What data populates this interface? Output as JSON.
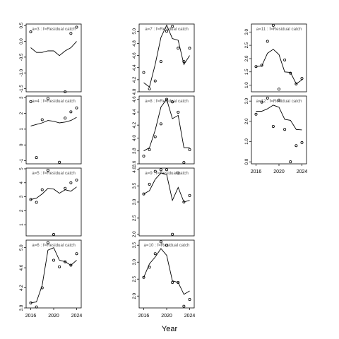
{
  "figure": {
    "xlabel": "Year"
  },
  "chart_data": [
    {
      "type": "scatter+line",
      "title": "a=3  :  f=Residual catch",
      "x": [
        2016,
        2017,
        2018,
        2019,
        2020,
        2021,
        2022,
        2023,
        2024
      ],
      "points": [
        0.3,
        null,
        null,
        null,
        null,
        null,
        -1.6,
        0.25,
        0.45
      ],
      "line": [
        -0.2,
        -0.35,
        -0.35,
        -0.3,
        -0.3,
        -0.45,
        -0.3,
        -0.2,
        0.0
      ],
      "ylim": [
        -1.6,
        0.55
      ],
      "yticks": [
        0.5,
        0.0,
        -0.5,
        -1.0,
        -1.5
      ],
      "ytick_labels": [
        "0.5",
        "0.0",
        "-0.5",
        "-1.0",
        "-1.5"
      ]
    },
    {
      "type": "scatter+line",
      "title": "a=4  :  f=Residual catch",
      "x": [
        2016,
        2017,
        2018,
        2019,
        2020,
        2021,
        2022,
        2023,
        2024
      ],
      "points": [
        2.75,
        -0.8,
        1.6,
        2.95,
        null,
        -1.1,
        1.7,
        2.1,
        2.35
      ],
      "line": [
        1.2,
        1.3,
        1.4,
        1.55,
        1.5,
        1.4,
        1.45,
        1.55,
        1.75
      ],
      "ylim": [
        -1.2,
        3.1
      ],
      "yticks": [
        3,
        2,
        1,
        0,
        -1
      ],
      "ytick_labels": [
        "3",
        "2",
        "1",
        "0",
        "-1"
      ]
    },
    {
      "type": "scatter+line",
      "title": "a=5  :  f=Residual catch",
      "x": [
        2016,
        2017,
        2018,
        2019,
        2020,
        2021,
        2022,
        2023,
        2024
      ],
      "points": [
        2.8,
        2.6,
        3.5,
        4.9,
        0.3,
        null,
        3.6,
        4.0,
        4.2
      ],
      "line": [
        2.8,
        2.9,
        3.2,
        3.6,
        3.55,
        3.25,
        3.5,
        3.4,
        3.7
      ],
      "ylim": [
        0.2,
        5.05
      ],
      "yticks": [
        5,
        4,
        3,
        2,
        1
      ],
      "ytick_labels": [
        "5",
        "4",
        "3",
        "2",
        "1"
      ]
    },
    {
      "type": "scatter+line",
      "title": "a=6  :  f=Residual catch",
      "x": [
        2016,
        2017,
        2018,
        2019,
        2020,
        2021,
        2022,
        2023,
        2024
      ],
      "points": [
        3.9,
        3.82,
        4.2,
        5.1,
        4.75,
        4.62,
        4.72,
        4.65,
        4.88
      ],
      "line": [
        3.9,
        3.92,
        4.25,
        4.95,
        5.0,
        4.75,
        4.72,
        4.65,
        4.75
      ],
      "ylim": [
        3.8,
        5.15
      ],
      "yticks": [
        3.8,
        4.2,
        4.6,
        5.0
      ],
      "ytick_labels": [
        "3.8",
        "4.2",
        "4.6",
        "5.0"
      ]
    },
    {
      "type": "scatter+line",
      "title": "a=7  :  f=Residual catch",
      "x": [
        2016,
        2017,
        2018,
        2019,
        2020,
        2021,
        2022,
        2023,
        2024
      ],
      "points": [
        4.32,
        4.05,
        4.18,
        4.5,
        5.0,
        5.08,
        4.72,
        4.5,
        4.72
      ],
      "line": [
        4.15,
        4.08,
        4.45,
        4.9,
        5.1,
        4.88,
        4.85,
        4.45,
        4.6
      ],
      "ylim": [
        4.0,
        5.12
      ],
      "yticks": [
        4.0,
        4.2,
        4.4,
        4.6,
        4.8,
        5.0
      ],
      "ytick_labels": [
        "4.0",
        "4.2",
        "4.4",
        "4.6",
        "4.8",
        "5.0"
      ]
    },
    {
      "type": "scatter+line",
      "title": "a=8  :  f=Residual catch",
      "x": [
        2016,
        2017,
        2018,
        2019,
        2020,
        2021,
        2022,
        2023,
        2024
      ],
      "points": [
        3.72,
        3.82,
        4.02,
        4.22,
        4.6,
        4.56,
        4.4,
        3.62,
        3.82
      ],
      "line": [
        3.8,
        3.85,
        4.12,
        4.48,
        4.6,
        4.3,
        4.35,
        3.85,
        3.85
      ],
      "ylim": [
        3.6,
        4.65
      ],
      "yticks": [
        3.6,
        3.8,
        4.0,
        4.2,
        4.4,
        4.6
      ],
      "ytick_labels": [
        "3.6",
        "3.8",
        "4.0",
        "4.2",
        "4.4",
        "4.6"
      ]
    },
    {
      "type": "scatter+line",
      "title": "a=9  :  f=Residual catch",
      "x": [
        2016,
        2017,
        2018,
        2019,
        2020,
        2021,
        2022,
        2023,
        2024
      ],
      "points": [
        3.25,
        3.55,
        3.95,
        4.0,
        4.0,
        2.0,
        3.9,
        3.0,
        3.2
      ],
      "line": [
        3.25,
        3.35,
        3.7,
        3.9,
        3.85,
        3.05,
        3.45,
        3.0,
        3.05
      ],
      "ylim": [
        1.95,
        4.05
      ],
      "yticks": [
        2.0,
        2.5,
        3.0,
        3.5,
        4.0
      ],
      "ytick_labels": [
        "2.0",
        "2.5",
        "3.0",
        "3.5",
        "4.0"
      ]
    },
    {
      "type": "scatter+line",
      "title": "a=10  :  f=Residual catch",
      "x": [
        2016,
        2017,
        2018,
        2019,
        2020,
        2021,
        2022,
        2023,
        2024
      ],
      "points": [
        2.55,
        2.85,
        3.25,
        3.6,
        3.5,
        2.4,
        2.4,
        1.7,
        1.9
      ],
      "line": [
        2.55,
        2.95,
        3.15,
        3.4,
        3.2,
        2.45,
        2.4,
        2.05,
        2.15
      ],
      "ylim": [
        1.65,
        3.65
      ],
      "yticks": [
        2.0,
        2.5,
        3.0,
        3.5
      ],
      "ytick_labels": [
        "2.0",
        "2.5",
        "3.0",
        "3.5"
      ]
    },
    {
      "type": "scatter+line",
      "title": "a=11  :  f=Residual catch",
      "x": [
        2016,
        2017,
        2018,
        2019,
        2020,
        2021,
        2022,
        2023,
        2024
      ],
      "points": [
        1.7,
        1.75,
        2.65,
        3.25,
        0.85,
        1.95,
        1.45,
        1.05,
        1.25
      ],
      "line": [
        1.7,
        1.72,
        2.2,
        2.35,
        2.15,
        1.5,
        1.48,
        1.05,
        1.2
      ],
      "ylim": [
        0.75,
        3.3
      ],
      "yticks": [
        1.0,
        1.5,
        2.0,
        2.5,
        3.0
      ],
      "ytick_labels": [
        "1.0",
        "1.5",
        "2.0",
        "2.5",
        "3.0"
      ]
    },
    {
      "type": "scatter+line",
      "title": "a=12  :  f=Residual catch",
      "x": [
        2016,
        2017,
        2018,
        2019,
        2020,
        2021,
        2022,
        2023,
        2024
      ],
      "points": [
        2.35,
        2.95,
        3.15,
        1.75,
        3.05,
        1.6,
        0.0,
        0.8,
        0.95
      ],
      "line": [
        2.5,
        2.5,
        2.62,
        2.8,
        2.7,
        2.1,
        2.05,
        1.6,
        1.58
      ],
      "ylim": [
        -0.1,
        3.25
      ],
      "yticks": [
        0.0,
        1.0,
        2.0,
        3.0
      ],
      "ytick_labels": [
        "0.0",
        "1.0",
        "2.0",
        "3.0"
      ]
    }
  ],
  "xaxis": {
    "xlim": [
      2015.2,
      2024.8
    ],
    "ticks": [
      2016,
      2020,
      2024
    ],
    "tick_labels": [
      "2016",
      "2020",
      "2024"
    ]
  }
}
